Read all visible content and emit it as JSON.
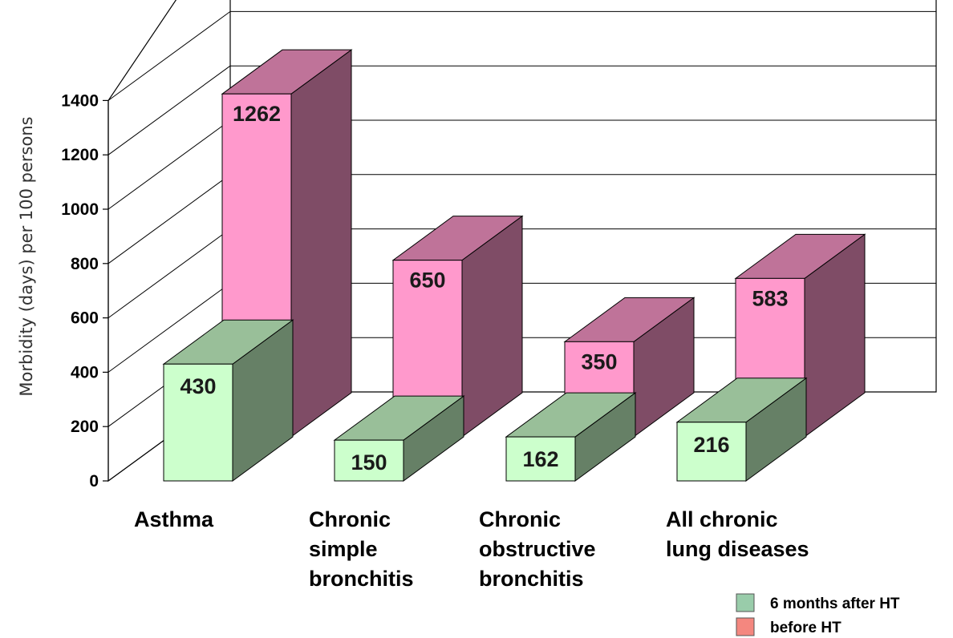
{
  "chart_data": {
    "type": "bar",
    "subtype": "3d-stacked-depth",
    "ylabel": "Morbidity (days) per 100 persons",
    "ylim": [
      0,
      1400
    ],
    "yticks": [
      0,
      200,
      400,
      600,
      800,
      1000,
      1200,
      1400
    ],
    "grid": true,
    "legend_position": "bottom-right",
    "categories": [
      [
        "Asthma"
      ],
      [
        "Chronic",
        "simple",
        "bronchitis"
      ],
      [
        "Chronic",
        "obstructive",
        "bronchitis"
      ],
      [
        "All chronic",
        "lung diseases"
      ]
    ],
    "series": [
      {
        "name": "6 months after HT",
        "values": [
          430,
          150,
          162,
          216
        ],
        "color": "#ccffcc",
        "legend_color": "#99ccaa"
      },
      {
        "name": "before HT",
        "values": [
          1262,
          650,
          350,
          583
        ],
        "color": "#ff99cc",
        "legend_color": "#f4877f"
      }
    ]
  }
}
